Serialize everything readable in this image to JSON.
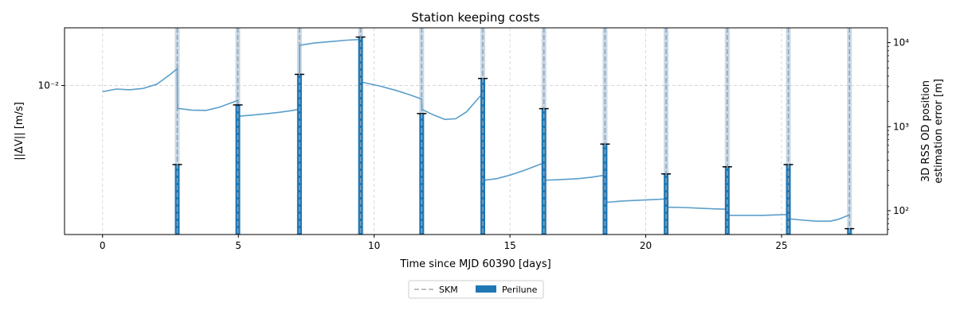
{
  "chart_data": {
    "type": "bar",
    "title": "Station keeping costs",
    "xlabel": "Time since MJD 60390 [days]",
    "ylabel_left": "||ΔV|| [m/s]",
    "ylabel_right_line1": "3D RSS OD position",
    "ylabel_right_line2": "estimation error [m]",
    "x_ticks": [
      "0",
      "5",
      "10",
      "15",
      "20",
      "25"
    ],
    "x_tick_values": [
      0,
      5,
      10,
      15,
      20,
      25
    ],
    "xlim": [
      -1.4,
      28.9
    ],
    "left_ylim": [
      0.0011,
      0.0235
    ],
    "left_scale": "log",
    "left_tick_label": "10⁻²",
    "right_ylim": [
      52,
      15000
    ],
    "right_scale": "log",
    "right_ticks": [
      {
        "value": 100,
        "label": "10²"
      },
      {
        "value": 1000,
        "label": "10³"
      },
      {
        "value": 10000,
        "label": "10⁴"
      }
    ],
    "grid": true,
    "legend": {
      "placement": "bottom-center",
      "entries": [
        {
          "key": "skm",
          "label": "SKM"
        },
        {
          "key": "perilune",
          "label": "Perilune"
        }
      ]
    },
    "colors": {
      "bar": "#1f77b4",
      "line": "#5b9ec9",
      "skm_line": "#8fa3b8",
      "skm_band": "#c9d9e6",
      "grid": "#d0d0d0"
    },
    "skm_times": [
      2.75,
      4.98,
      7.25,
      9.5,
      11.75,
      14.0,
      16.25,
      18.5,
      20.75,
      23.0,
      25.25,
      27.5
    ],
    "bars": {
      "name": "Perilune",
      "x": [
        2.75,
        4.98,
        7.25,
        9.5,
        11.75,
        14.0,
        16.25,
        18.5,
        20.75,
        23.0,
        25.25,
        27.5
      ],
      "values": [
        0.0031,
        0.0075,
        0.0118,
        0.0205,
        0.0066,
        0.0111,
        0.0071,
        0.0042,
        0.0027,
        0.003,
        0.0031,
        0.0012
      ]
    },
    "od_error": {
      "segments": [
        {
          "x": [
            0,
            0.5,
            1,
            1.5,
            2,
            2.5,
            2.75
          ],
          "y": [
            2600,
            2800,
            2750,
            2850,
            3200,
            4200,
            4900
          ]
        },
        {
          "x": [
            2.76,
            3.3,
            3.8,
            4.3,
            4.98
          ],
          "y": [
            1650,
            1570,
            1560,
            1700,
            2050
          ]
        },
        {
          "x": [
            4.99,
            5.5,
            6.0,
            6.5,
            7.0,
            7.25
          ],
          "y": [
            1330,
            1370,
            1420,
            1480,
            1560,
            1620
          ]
        },
        {
          "x": [
            7.26,
            7.8,
            8.4,
            9.0,
            9.5
          ],
          "y": [
            9300,
            9900,
            10300,
            10700,
            10900
          ]
        },
        {
          "x": [
            9.51,
            10.2,
            10.8,
            11.3,
            11.75
          ],
          "y": [
            3400,
            3050,
            2700,
            2400,
            2130
          ]
        },
        {
          "x": [
            11.76,
            12.2,
            12.6,
            13.0,
            13.4,
            14.0
          ],
          "y": [
            1600,
            1370,
            1220,
            1240,
            1500,
            2500
          ]
        },
        {
          "x": [
            14.01,
            14.5,
            15.0,
            15.5,
            16.0,
            16.25
          ],
          "y": [
            230,
            240,
            265,
            300,
            345,
            370
          ]
        },
        {
          "x": [
            16.26,
            16.9,
            17.5,
            18.0,
            18.5
          ],
          "y": [
            230,
            235,
            240,
            250,
            265
          ]
        },
        {
          "x": [
            18.51,
            19.1,
            19.7,
            20.2,
            20.75
          ],
          "y": [
            125,
            130,
            133,
            135,
            138
          ]
        },
        {
          "x": [
            20.76,
            21.4,
            22.0,
            22.5,
            23.0
          ],
          "y": [
            110,
            109,
            107,
            105,
            104
          ]
        },
        {
          "x": [
            23.01,
            23.7,
            24.3,
            24.8,
            25.25
          ],
          "y": [
            88,
            88,
            88,
            89,
            90
          ]
        },
        {
          "x": [
            25.26,
            25.8,
            26.3,
            26.8,
            27.1,
            27.5
          ],
          "y": [
            80,
            77,
            75,
            75,
            79,
            89
          ]
        }
      ]
    }
  }
}
